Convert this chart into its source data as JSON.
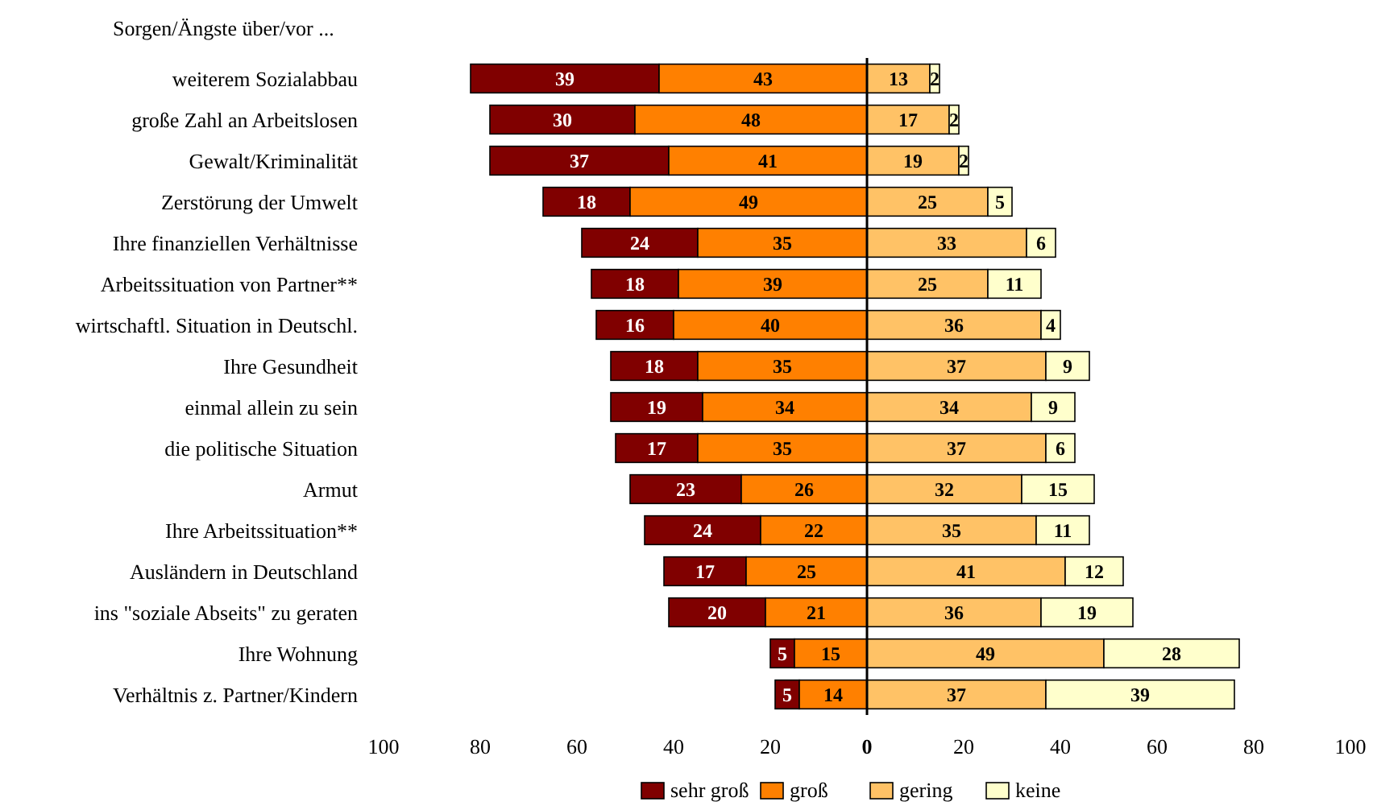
{
  "chart_data": {
    "type": "bar",
    "orientation": "horizontal",
    "title": "Sorgen/Ängste über/vor ...",
    "categories": [
      "weiterem Sozialabbau",
      "große Zahl an Arbeitslosen",
      "Gewalt/Kriminalität",
      "Zerstörung der Umwelt",
      "Ihre finanziellen Verhältnisse",
      "Arbeitssituation von Partner**",
      "wirtschaftl. Situation in Deutschl.",
      "Ihre Gesundheit",
      "einmal allein zu sein",
      "die politische Situation",
      "Armut",
      "Ihre Arbeitssituation**",
      "Ausländern in Deutschland",
      "ins \"soziale Abseits\" zu geraten",
      "Ihre Wohnung",
      "Verhältnis z. Partner/Kindern"
    ],
    "series": [
      {
        "name": "sehr groß",
        "color": "#800000",
        "values": [
          39,
          30,
          37,
          18,
          24,
          18,
          16,
          18,
          19,
          17,
          23,
          24,
          17,
          20,
          5,
          5
        ],
        "base": [
          -82,
          -78,
          -78,
          -67,
          -59,
          -57,
          -56,
          -53,
          -53,
          -52,
          -49,
          -46,
          -42,
          -41,
          -20,
          -19
        ]
      },
      {
        "name": "groß",
        "color": "#ff8000",
        "values": [
          43,
          48,
          41,
          49,
          35,
          39,
          40,
          35,
          34,
          35,
          26,
          22,
          25,
          21,
          15,
          14
        ],
        "base": [
          -43,
          -48,
          -41,
          -49,
          -35,
          -39,
          -40,
          -35,
          -34,
          -35,
          -26,
          -22,
          -25,
          -21,
          -15,
          -14
        ]
      },
      {
        "name": "gering",
        "color": "#ffc266",
        "values": [
          13,
          17,
          19,
          25,
          33,
          25,
          36,
          37,
          34,
          37,
          32,
          35,
          41,
          36,
          49,
          37
        ],
        "base": [
          0,
          0,
          0,
          0,
          0,
          0,
          0,
          0,
          0,
          0,
          0,
          0,
          0,
          0,
          0,
          0
        ]
      },
      {
        "name": "keine",
        "color": "#ffffcc",
        "values": [
          2,
          2,
          2,
          5,
          6,
          11,
          4,
          9,
          9,
          6,
          15,
          11,
          12,
          19,
          28,
          39
        ],
        "base": [
          13,
          17,
          19,
          25,
          33,
          25,
          36,
          37,
          34,
          37,
          32,
          35,
          41,
          36,
          49,
          37
        ]
      }
    ],
    "xlim": [
      -100,
      100
    ],
    "xticks": [
      {
        "value": -100,
        "label": "100"
      },
      {
        "value": -80,
        "label": "80"
      },
      {
        "value": -60,
        "label": "60"
      },
      {
        "value": -40,
        "label": "40"
      },
      {
        "value": -20,
        "label": "20"
      },
      0,
      20,
      40,
      60,
      80,
      100
    ],
    "data_labels": true,
    "legend": "bottom"
  }
}
